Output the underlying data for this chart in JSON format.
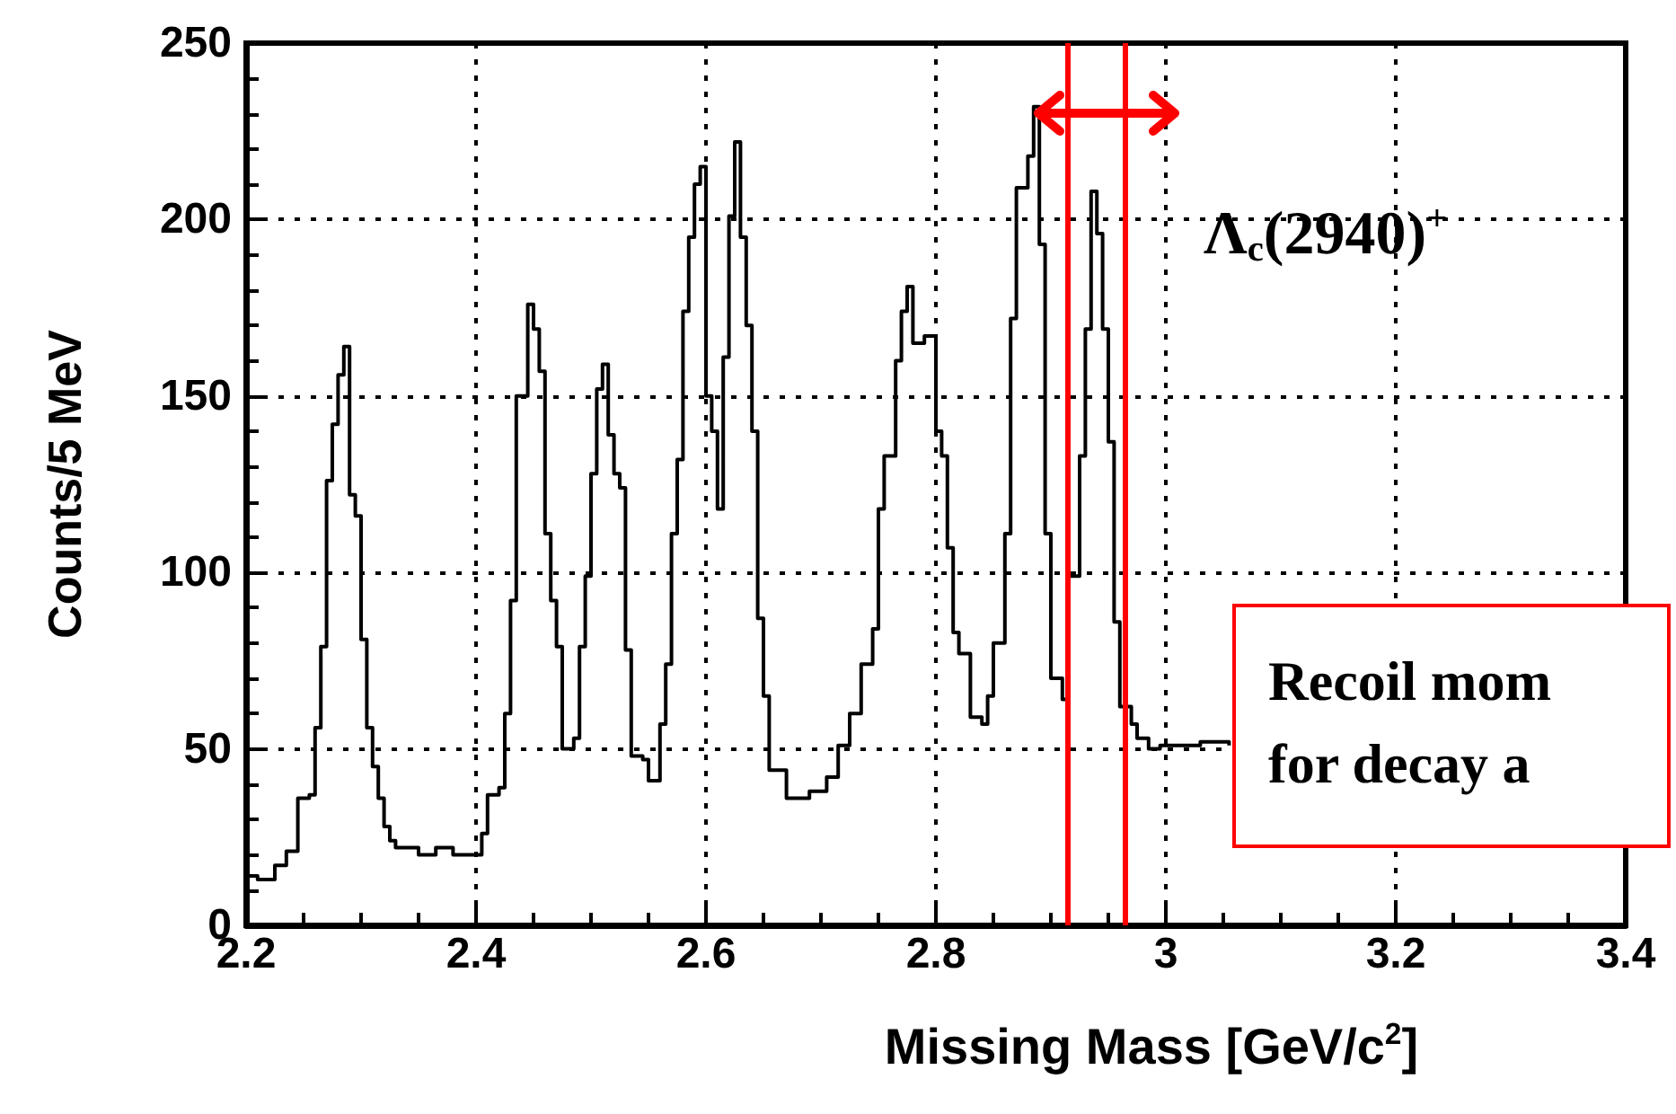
{
  "chart_data": {
    "type": "step",
    "xlabel": "Missing Mass [GeV/c$^{2}$]",
    "ylabel": "Counts/5 MeV",
    "color": "#000000",
    "x": [
      2.2,
      2.21,
      2.225,
      2.235,
      2.245,
      2.255,
      2.26,
      2.265,
      2.27,
      2.275,
      2.28,
      2.285,
      2.29,
      2.295,
      2.3,
      2.305,
      2.31,
      2.315,
      2.32,
      2.325,
      2.33,
      2.35,
      2.365,
      2.38,
      2.405,
      2.41,
      2.42,
      2.425,
      2.43,
      2.435,
      2.445,
      2.45,
      2.455,
      2.46,
      2.465,
      2.47,
      2.475,
      2.485,
      2.49,
      2.495,
      2.5,
      2.505,
      2.51,
      2.515,
      2.52,
      2.525,
      2.53,
      2.535,
      2.545,
      2.55,
      2.56,
      2.565,
      2.57,
      2.575,
      2.58,
      2.585,
      2.59,
      2.595,
      2.6,
      2.605,
      2.61,
      2.615,
      2.62,
      2.625,
      2.63,
      2.635,
      2.64,
      2.645,
      2.65,
      2.655,
      2.67,
      2.69,
      2.705,
      2.715,
      2.725,
      2.735,
      2.745,
      2.75,
      2.755,
      2.765,
      2.77,
      2.775,
      2.78,
      2.79,
      2.8,
      2.805,
      2.81,
      2.815,
      2.82,
      2.83,
      2.84,
      2.845,
      2.85,
      2.86,
      2.865,
      2.87,
      2.88,
      2.885,
      2.89,
      2.895,
      2.9,
      2.91,
      2.915,
      2.925,
      2.93,
      2.935,
      2.94,
      2.945,
      2.95,
      2.955,
      2.96,
      2.97,
      2.975,
      2.985,
      2.995,
      3.03,
      3.055
    ],
    "values": [
      14,
      13,
      17,
      21,
      36,
      37,
      56,
      79,
      126,
      142,
      156,
      164,
      122,
      116,
      81,
      56,
      45,
      36,
      28,
      24,
      22,
      20,
      22,
      20,
      26,
      37,
      39,
      60,
      92,
      150,
      176,
      169,
      157,
      111,
      92,
      79,
      50,
      53,
      79,
      99,
      128,
      152,
      159,
      139,
      128,
      124,
      78,
      48,
      47,
      41,
      57,
      74,
      111,
      132,
      174,
      195,
      210,
      215,
      150,
      140,
      118,
      161,
      201,
      222,
      195,
      170,
      140,
      87,
      65,
      44,
      36,
      38,
      42,
      51,
      60,
      74,
      84,
      118,
      133,
      160,
      174,
      181,
      165,
      167,
      140,
      133,
      107,
      83,
      77,
      59,
      57,
      65,
      80,
      111,
      172,
      209,
      218,
      232,
      193,
      111,
      70,
      64,
      99,
      133,
      169,
      208,
      196,
      169,
      137,
      86,
      62,
      57,
      53,
      50,
      51,
      52,
      51
    ],
    "xlim": [
      2.2,
      3.4
    ],
    "xticks": [
      2.2,
      2.4,
      2.6,
      2.8,
      3,
      3.2,
      3.4
    ],
    "ylim": [
      0,
      250
    ],
    "yticks": [
      0,
      50,
      100,
      150,
      200,
      250
    ],
    "grid": true,
    "ref_lines": [
      {
        "axis": "x",
        "value": 2.915,
        "color": "#ff0000"
      },
      {
        "axis": "x",
        "value": 2.965,
        "color": "#ff0000"
      }
    ],
    "annotations": [
      "Λ$_{c}$(2940)$^{+}$",
      "Recoil mom\nfor decay a"
    ]
  }
}
